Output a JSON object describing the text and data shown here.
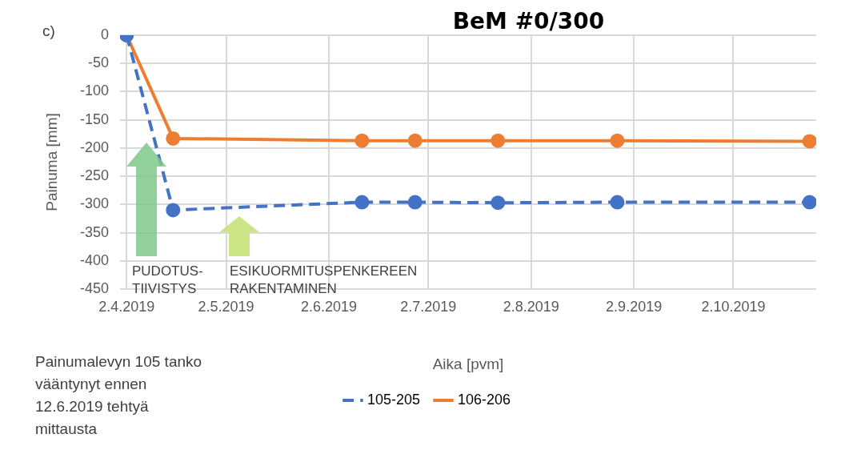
{
  "chart_data": {
    "type": "line",
    "title": "BeM #0/300",
    "xlabel": "Aika [pvm]",
    "ylabel": "Painuma [mm]",
    "x": [
      "2019-04-02",
      "2019-04-16",
      "2019-06-12",
      "2019-06-28",
      "2019-07-23",
      "2019-08-28",
      "2019-10-25"
    ],
    "series": [
      {
        "name": "105-205",
        "color": "#4472c4",
        "line_style": "dashed",
        "values": [
          0,
          -310,
          -296,
          -296,
          -297,
          -296,
          -296
        ]
      },
      {
        "name": "106-206",
        "color": "#ed7d31",
        "line_style": "solid",
        "values": [
          0,
          -183,
          -187,
          -187,
          -187,
          -187,
          -188
        ]
      }
    ],
    "xlim": [
      "2019-03-31",
      "2019-10-27"
    ],
    "xticks": [
      {
        "value": "2019-04-02",
        "label": "2.4.2019"
      },
      {
        "value": "2019-05-02",
        "label": "2.5.2019"
      },
      {
        "value": "2019-06-02",
        "label": "2.6.2019"
      },
      {
        "value": "2019-07-02",
        "label": "2.7.2019"
      },
      {
        "value": "2019-08-02",
        "label": "2.8.2019"
      },
      {
        "value": "2019-09-02",
        "label": "2.9.2019"
      },
      {
        "value": "2019-10-02",
        "label": "2.10.2019"
      }
    ],
    "ylim": [
      -450,
      0
    ],
    "yticks": [
      -450,
      -400,
      -350,
      -300,
      -250,
      -200,
      -150,
      -100,
      -50,
      0
    ],
    "grid": true,
    "legend": "bottom",
    "marker": "circle",
    "annotations": [
      "c)",
      "Painumalevyn 105 tanko\nvääntynyt ennen\n12.6.2019 tehtyä\nmittausta",
      "PUDOTUS-\nTIIVISTYS",
      "ESIKUORMITUSPENKEREEN\nRAKENTAMINEN"
    ]
  }
}
